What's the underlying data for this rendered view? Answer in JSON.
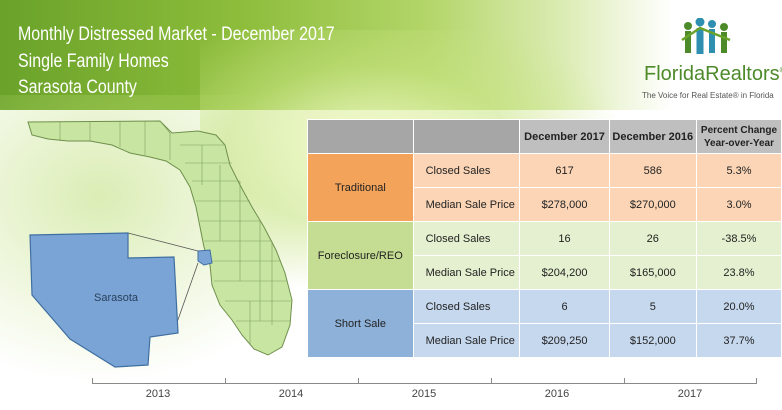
{
  "header": {
    "line1": "Monthly Distressed Market - December 2017",
    "line2": "Single Family Homes",
    "line3": "Sarasota County"
  },
  "logo": {
    "brand": "FloridaRealtors",
    "registered": "®",
    "tagline": "The Voice for Real Estate® in Florida"
  },
  "map": {
    "county_label": "Sarasota",
    "highlight_color": "#7aa4d6",
    "state_color": "#c8e6a2"
  },
  "table": {
    "headers": [
      "",
      "",
      "December 2017",
      "December 2016",
      "Percent Change Year-over-Year"
    ],
    "groups": [
      {
        "category": "Traditional",
        "rows": [
          {
            "metric": "Closed Sales",
            "dec2017": "617",
            "dec2016": "586",
            "change": "5.3%"
          },
          {
            "metric": "Median Sale Price",
            "dec2017": "$278,000",
            "dec2016": "$270,000",
            "change": "3.0%"
          }
        ]
      },
      {
        "category": "Foreclosure/REO",
        "rows": [
          {
            "metric": "Closed Sales",
            "dec2017": "16",
            "dec2016": "26",
            "change": "-38.5%"
          },
          {
            "metric": "Median Sale Price",
            "dec2017": "$204,200",
            "dec2016": "$165,000",
            "change": "23.8%"
          }
        ]
      },
      {
        "category": "Short Sale",
        "rows": [
          {
            "metric": "Closed Sales",
            "dec2017": "6",
            "dec2016": "5",
            "change": "20.0%"
          },
          {
            "metric": "Median Sale Price",
            "dec2017": "$209,250",
            "dec2016": "$152,000",
            "change": "37.7%"
          }
        ]
      }
    ]
  },
  "timeline": {
    "years": [
      "2013",
      "2014",
      "2015",
      "2016",
      "2017"
    ]
  },
  "colors": {
    "traditional": "#f4a35a",
    "foreclosure": "#c5dd92",
    "short_sale": "#8db1d8",
    "banner": "#7ab33a"
  }
}
